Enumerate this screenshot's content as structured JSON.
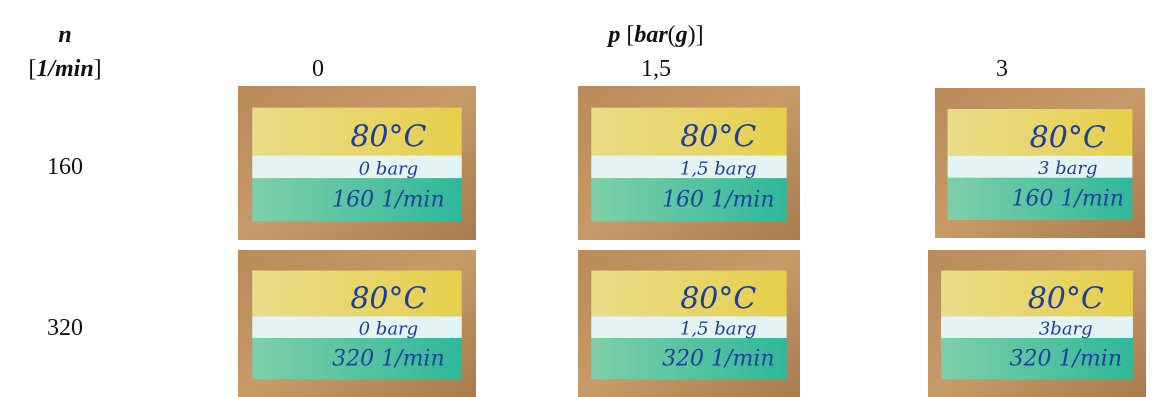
{
  "header": {
    "row_symbol": "n",
    "row_unit": [
      "[",
      "1/min",
      "]"
    ],
    "col_symbol": "p",
    "col_unit": [
      "[",
      "bar",
      "(",
      "g",
      ")]"
    ]
  },
  "columns": [
    "0",
    "1,5",
    "3"
  ],
  "rows": [
    {
      "label": "160",
      "photos": [
        {
          "lines": [
            "80°C",
            "0 barg",
            "160 1/min"
          ]
        },
        {
          "lines": [
            "80°C",
            "1,5 barg",
            "160 1/min"
          ]
        },
        {
          "lines": [
            "80°C",
            "3 barg",
            "160 1/min"
          ]
        }
      ]
    },
    {
      "label": "320",
      "photos": [
        {
          "lines": [
            "80°C",
            "0 barg",
            "320 1/min"
          ]
        },
        {
          "lines": [
            "80°C",
            "1,5 barg",
            "320 1/min"
          ]
        },
        {
          "lines": [
            "80°C",
            "3barg",
            "320 1/min"
          ]
        }
      ]
    }
  ]
}
